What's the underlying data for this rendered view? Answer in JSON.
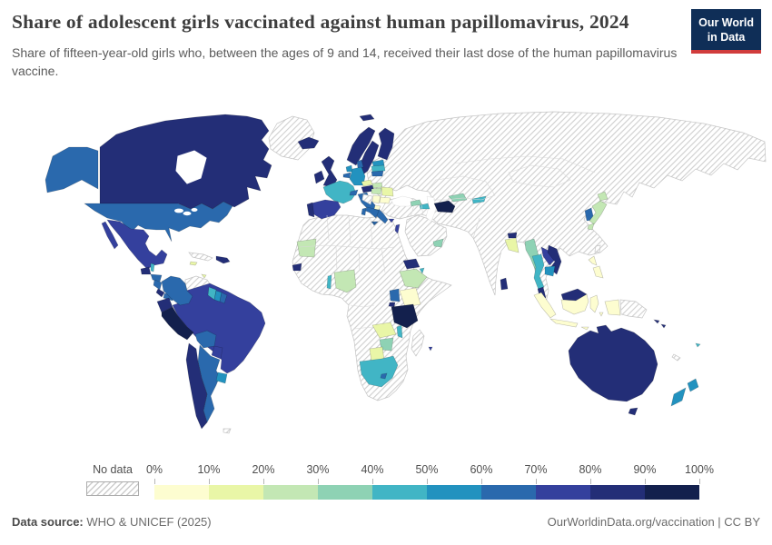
{
  "header": {
    "title": "Share of adolescent girls vaccinated against human papillomavirus, 2024",
    "subtitle": "Share of fifteen-year-old girls who, between the ages of 9 and 14, received their last dose of the human papillomavirus vaccine.",
    "logo": {
      "line1": "Our World",
      "line2": "in Data",
      "bg": "#0f2e57",
      "accent": "#d13c3c"
    }
  },
  "footer": {
    "source_label": "Data source:",
    "source_value": " WHO & UNICEF (2025)",
    "right_text": "OurWorldinData.org/vaccination | CC BY"
  },
  "chart_data": {
    "type": "choropleth_map",
    "title": "Share of adolescent girls vaccinated against human papillomavirus",
    "year": "2024",
    "unit": "% of fifteen-year-old girls",
    "legend": {
      "no_data_label": "No data",
      "no_data_pattern": "diagonal-hatch",
      "tick_labels": [
        "0%",
        "10%",
        "20%",
        "30%",
        "40%",
        "50%",
        "60%",
        "70%",
        "80%",
        "90%",
        "100%"
      ],
      "bin_labels": [
        "0–10%",
        "10–20%",
        "20–30%",
        "30–40%",
        "40–50%",
        "50–60%",
        "60–70%",
        "70–80%",
        "80–90%",
        "90–100%"
      ],
      "colors": [
        "#fdfdd0",
        "#e9f6a7",
        "#c3e7b4",
        "#8ed2b4",
        "#41b5c5",
        "#2292bf",
        "#2a69ad",
        "#34409d",
        "#232e77",
        "#13204d"
      ],
      "no_data_border": "#c5c5c5",
      "region_border": "rgba(0,0,0,0.25)"
    },
    "regions": [
      {
        "id": "canada",
        "name": "Canada",
        "value": "80–90%",
        "bin": 8
      },
      {
        "id": "united-states",
        "name": "United States",
        "value": "60–70%",
        "bin": 6
      },
      {
        "id": "mexico",
        "name": "Mexico",
        "value": "70–80%",
        "bin": 7
      },
      {
        "id": "guatemala",
        "name": "Guatemala",
        "value": "80–90%",
        "bin": 8
      },
      {
        "id": "belize",
        "name": "Belize",
        "value": "40–50%",
        "bin": 4
      },
      {
        "id": "honduras",
        "name": "Honduras",
        "value": "60–70%",
        "bin": 6
      },
      {
        "id": "nicaragua",
        "name": "Nicaragua",
        "value": "60–70%",
        "bin": 6
      },
      {
        "id": "costa-rica",
        "name": "Costa Rica",
        "value": "80–90%",
        "bin": 8
      },
      {
        "id": "panama",
        "name": "Panama",
        "value": "60–70%",
        "bin": 6
      },
      {
        "id": "cuba",
        "name": "Cuba",
        "value": "No data",
        "bin": -1
      },
      {
        "id": "jamaica",
        "name": "Jamaica",
        "value": "10–20%",
        "bin": 1
      },
      {
        "id": "hispaniola",
        "name": "Dominican Republic & Haiti",
        "value": "80–90%",
        "bin": 8
      },
      {
        "id": "trinidad",
        "name": "Trinidad and Tobago",
        "value": "10–20%",
        "bin": 1
      },
      {
        "id": "colombia",
        "name": "Colombia",
        "value": "60–70%",
        "bin": 6
      },
      {
        "id": "venezuela",
        "name": "Venezuela",
        "value": "No data",
        "bin": -1
      },
      {
        "id": "guyana",
        "name": "Guyana",
        "value": "40–50%",
        "bin": 4
      },
      {
        "id": "suriname",
        "name": "Suriname",
        "value": "50–60%",
        "bin": 5
      },
      {
        "id": "french-guiana",
        "name": "French Guiana",
        "value": "60–70%",
        "bin": 6
      },
      {
        "id": "ecuador",
        "name": "Ecuador",
        "value": "80–90%",
        "bin": 8
      },
      {
        "id": "peru",
        "name": "Peru",
        "value": "90–100%",
        "bin": 9
      },
      {
        "id": "brazil",
        "name": "Brazil",
        "value": "70–80%",
        "bin": 7
      },
      {
        "id": "bolivia",
        "name": "Bolivia",
        "value": "60–70%",
        "bin": 6
      },
      {
        "id": "paraguay",
        "name": "Paraguay",
        "value": "70–80%",
        "bin": 7
      },
      {
        "id": "uruguay",
        "name": "Uruguay",
        "value": "50–60%",
        "bin": 5
      },
      {
        "id": "chile",
        "name": "Chile",
        "value": "80–90%",
        "bin": 8
      },
      {
        "id": "argentina",
        "name": "Argentina",
        "value": "60–70%",
        "bin": 6
      },
      {
        "id": "falklands",
        "name": "Falkland Islands",
        "value": "No data",
        "bin": -1
      },
      {
        "id": "greenland",
        "name": "Greenland",
        "value": "No data",
        "bin": -1
      },
      {
        "id": "iceland",
        "name": "Iceland",
        "value": "80–90%",
        "bin": 8
      },
      {
        "id": "norway",
        "name": "Norway",
        "value": "80–90%",
        "bin": 8
      },
      {
        "id": "sweden",
        "name": "Sweden",
        "value": "80–90%",
        "bin": 8
      },
      {
        "id": "finland",
        "name": "Finland",
        "value": "80–90%",
        "bin": 8
      },
      {
        "id": "denmark",
        "name": "Denmark",
        "value": "60–70%",
        "bin": 6
      },
      {
        "id": "estonia",
        "name": "Estonia",
        "value": "50–60%",
        "bin": 5
      },
      {
        "id": "latvia",
        "name": "Latvia",
        "value": "40–50%",
        "bin": 4
      },
      {
        "id": "lithuania",
        "name": "Lithuania",
        "value": "60–70%",
        "bin": 6
      },
      {
        "id": "united-kingdom",
        "name": "United Kingdom",
        "value": "80–90%",
        "bin": 8
      },
      {
        "id": "ireland",
        "name": "Ireland",
        "value": "80–90%",
        "bin": 8
      },
      {
        "id": "netherlands",
        "name": "Netherlands",
        "value": "50–60%",
        "bin": 5
      },
      {
        "id": "belgium",
        "name": "Belgium",
        "value": "60–70%",
        "bin": 6
      },
      {
        "id": "germany",
        "name": "Germany",
        "value": "50–60%",
        "bin": 5
      },
      {
        "id": "france",
        "name": "France",
        "value": "40–50%",
        "bin": 4
      },
      {
        "id": "spain",
        "name": "Spain",
        "value": "70–80%",
        "bin": 7
      },
      {
        "id": "portugal",
        "name": "Portugal",
        "value": "80–90%",
        "bin": 8
      },
      {
        "id": "switzerland",
        "name": "Switzerland",
        "value": "60–70%",
        "bin": 6
      },
      {
        "id": "italy",
        "name": "Italy",
        "value": "60–70%",
        "bin": 6
      },
      {
        "id": "austria",
        "name": "Austria",
        "value": "80–90%",
        "bin": 8
      },
      {
        "id": "czechia",
        "name": "Czechia",
        "value": "10–20%",
        "bin": 1
      },
      {
        "id": "slovakia",
        "name": "Slovakia",
        "value": "20–30%",
        "bin": 2
      },
      {
        "id": "hungary",
        "name": "Hungary",
        "value": "20–30%",
        "bin": 2
      },
      {
        "id": "romania",
        "name": "Romania",
        "value": "10–20%",
        "bin": 1
      },
      {
        "id": "serbia",
        "name": "Serbia",
        "value": "0–10%",
        "bin": 0
      },
      {
        "id": "bulgaria",
        "name": "Bulgaria",
        "value": "0–10%",
        "bin": 0
      },
      {
        "id": "north-macedonia",
        "name": "North Macedonia",
        "value": "0–10%",
        "bin": 0
      },
      {
        "id": "greece",
        "name": "Greece",
        "value": "60–70%",
        "bin": 6
      },
      {
        "id": "croatia-bosnia",
        "name": "Croatia / Bosnia (no data)",
        "value": "No data",
        "bin": -1
      },
      {
        "id": "cyprus",
        "name": "Cyprus",
        "value": "70–80%",
        "bin": 7
      },
      {
        "id": "israel",
        "name": "Israel",
        "value": "70–80%",
        "bin": 7
      },
      {
        "id": "georgia",
        "name": "Georgia",
        "value": "30–40%",
        "bin": 3
      },
      {
        "id": "azerbaijan",
        "name": "Azerbaijan",
        "value": "40–50%",
        "bin": 4
      },
      {
        "id": "turkmenistan",
        "name": "Turkmenistan",
        "value": "90–100%",
        "bin": 9
      },
      {
        "id": "uzbekistan",
        "name": "Uzbekistan",
        "value": "30–40%",
        "bin": 3
      },
      {
        "id": "kyrgyzstan",
        "name": "Kyrgyzstan",
        "value": "40–50%",
        "bin": 4
      },
      {
        "id": "uae",
        "name": "United Arab Emirates",
        "value": "30–40%",
        "bin": 3
      },
      {
        "id": "mauritania",
        "name": "Mauritania",
        "value": "20–30%",
        "bin": 2
      },
      {
        "id": "senegal",
        "name": "Senegal",
        "value": "80–90%",
        "bin": 8
      },
      {
        "id": "togo",
        "name": "Togo",
        "value": "40–50%",
        "bin": 4
      },
      {
        "id": "nigeria",
        "name": "Nigeria",
        "value": "20–30%",
        "bin": 2
      },
      {
        "id": "ethiopia",
        "name": "Ethiopia",
        "value": "20–30%",
        "bin": 2
      },
      {
        "id": "eritrea",
        "name": "Eritrea",
        "value": "80–90%",
        "bin": 8
      },
      {
        "id": "djibouti",
        "name": "Djibouti",
        "value": "40–50%",
        "bin": 4
      },
      {
        "id": "kenya",
        "name": "Kenya",
        "value": "0–10%",
        "bin": 0
      },
      {
        "id": "uganda",
        "name": "Uganda",
        "value": "60–70%",
        "bin": 6
      },
      {
        "id": "rwanda",
        "name": "Rwanda",
        "value": "80–90%",
        "bin": 8
      },
      {
        "id": "tanzania",
        "name": "Tanzania",
        "value": "90–100%",
        "bin": 9
      },
      {
        "id": "zambia",
        "name": "Zambia",
        "value": "10–20%",
        "bin": 1
      },
      {
        "id": "malawi",
        "name": "Malawi",
        "value": "40–50%",
        "bin": 4
      },
      {
        "id": "zimbabwe",
        "name": "Zimbabwe",
        "value": "30–40%",
        "bin": 3
      },
      {
        "id": "botswana",
        "name": "Botswana",
        "value": "10–20%",
        "bin": 1
      },
      {
        "id": "south-africa",
        "name": "South Africa",
        "value": "40–50%",
        "bin": 4
      },
      {
        "id": "lesotho",
        "name": "Lesotho",
        "value": "60–70%",
        "bin": 6
      },
      {
        "id": "mauritius",
        "name": "Mauritius",
        "value": "70–80%",
        "bin": 7
      },
      {
        "id": "madagascar",
        "name": "Madagascar",
        "value": "No data",
        "bin": -1
      },
      {
        "id": "bhutan",
        "name": "Bhutan",
        "value": "80–90%",
        "bin": 8
      },
      {
        "id": "bangladesh",
        "name": "Bangladesh",
        "value": "10–20%",
        "bin": 1
      },
      {
        "id": "sri-lanka",
        "name": "Sri Lanka",
        "value": "80–90%",
        "bin": 8
      },
      {
        "id": "myanmar",
        "name": "Myanmar",
        "value": "30–40%",
        "bin": 3
      },
      {
        "id": "thailand",
        "name": "Thailand",
        "value": "40–50%",
        "bin": 4
      },
      {
        "id": "laos",
        "name": "Laos",
        "value": "70–80%",
        "bin": 7
      },
      {
        "id": "vietnam",
        "name": "Vietnam",
        "value": "80–90%",
        "bin": 8
      },
      {
        "id": "cambodia",
        "name": "Cambodia",
        "value": "50–60%",
        "bin": 5
      },
      {
        "id": "malaysia",
        "name": "Malaysia",
        "value": "80–90%",
        "bin": 8
      },
      {
        "id": "indonesia",
        "name": "Indonesia",
        "value": "0–10%",
        "bin": 0
      },
      {
        "id": "philippines",
        "name": "Philippines",
        "value": "0–10%",
        "bin": 0
      },
      {
        "id": "south-korea",
        "name": "South Korea",
        "value": "60–70%",
        "bin": 6
      },
      {
        "id": "japan",
        "name": "Japan",
        "value": "20–30%",
        "bin": 2
      },
      {
        "id": "taiwan",
        "name": "Taiwan",
        "value": "No data",
        "bin": -1
      },
      {
        "id": "papua-new-guinea",
        "name": "Papua New Guinea",
        "value": "No data",
        "bin": -1
      },
      {
        "id": "solomon-islands",
        "name": "Solomon Islands",
        "value": "80–90%",
        "bin": 8
      },
      {
        "id": "fiji",
        "name": "Fiji",
        "value": "40–50%",
        "bin": 4
      },
      {
        "id": "new-caledonia",
        "name": "New Caledonia",
        "value": "No data",
        "bin": -1
      },
      {
        "id": "australia",
        "name": "Australia",
        "value": "80–90%",
        "bin": 8
      },
      {
        "id": "new-zealand",
        "name": "New Zealand",
        "value": "50–60%",
        "bin": 5
      },
      {
        "id": "eurasia-no-data",
        "name": "No data (Russia, China, India, Central Asia, Middle East, Turkey, Eastern Europe)",
        "value": "No data",
        "bin": -1
      },
      {
        "id": "arabia-no-data",
        "name": "No data (Saudi Arabia, Yemen, Oman)",
        "value": "No data",
        "bin": -1
      },
      {
        "id": "africa-no-data",
        "name": "No data (North & Central Africa)",
        "value": "No data",
        "bin": -1
      }
    ]
  }
}
